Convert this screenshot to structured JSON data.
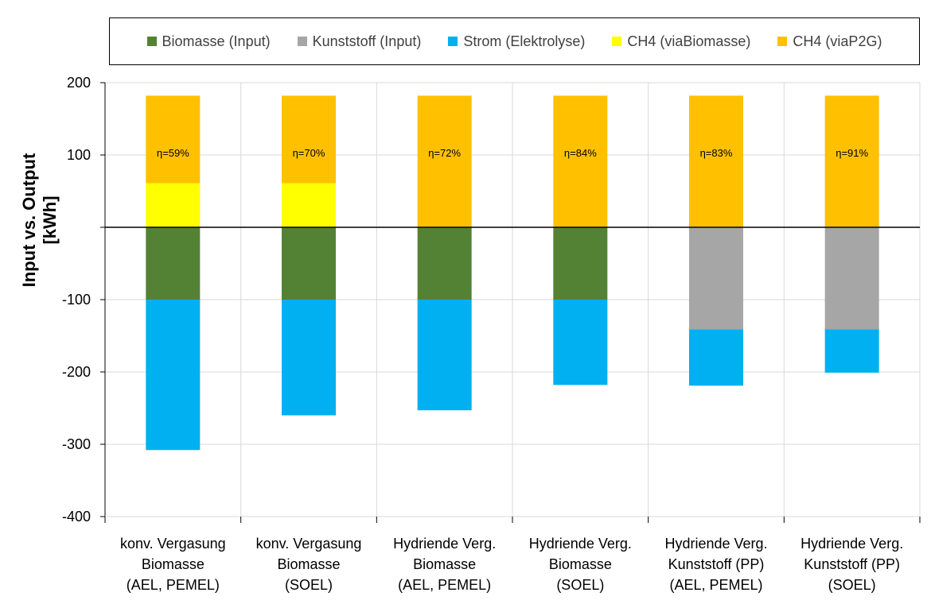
{
  "chart_data": {
    "type": "bar",
    "stacked": true,
    "ylabel": [
      "Input  vs. Output",
      "[kWh]"
    ],
    "ylim": [
      -400,
      200
    ],
    "yticks": [
      200,
      100,
      0,
      -100,
      -200,
      -300,
      -400
    ],
    "ytick_labels": [
      "200",
      "100",
      "",
      "-100",
      "-200",
      "-300",
      "-400"
    ],
    "grid": true,
    "legend_position": "top",
    "categories": [
      [
        "konv. Vergasung",
        "Biomasse",
        "(AEL, PEMEL)"
      ],
      [
        "konv. Vergasung",
        "Biomasse",
        "(SOEL)"
      ],
      [
        "Hydriende Verg.",
        "Biomasse",
        "(AEL, PEMEL)"
      ],
      [
        "Hydriende Verg.",
        "Biomasse",
        "(SOEL)"
      ],
      [
        "Hydriende Verg.",
        "Kunststoff (PP)",
        "(AEL, PEMEL)"
      ],
      [
        "Hydriende Verg.",
        "Kunststoff (PP)",
        "(SOEL)"
      ]
    ],
    "series": [
      {
        "name": "Biomasse (Input)",
        "color": "#548235",
        "values": [
          -100,
          -100,
          -100,
          -100,
          0,
          0
        ]
      },
      {
        "name": "Kunststoff (Input)",
        "color": "#a6a6a6",
        "values": [
          0,
          0,
          0,
          0,
          -141,
          -141
        ]
      },
      {
        "name": "Strom (Elektrolyse)",
        "color": "#00b0f0",
        "values": [
          -208,
          -160,
          -153,
          -118,
          -78,
          -60
        ]
      },
      {
        "name": "CH4 (viaBiomasse)",
        "color": "#ffff00",
        "values": [
          61,
          61,
          0,
          0,
          0,
          0
        ]
      },
      {
        "name": "CH4 (viaP2G)",
        "color": "#ffc000",
        "values": [
          121,
          121,
          182,
          182,
          182,
          182
        ]
      }
    ],
    "annotations": [
      "η=59%",
      "η=70%",
      "η=72%",
      "η=84%",
      "η=83%",
      "η=91%"
    ]
  }
}
